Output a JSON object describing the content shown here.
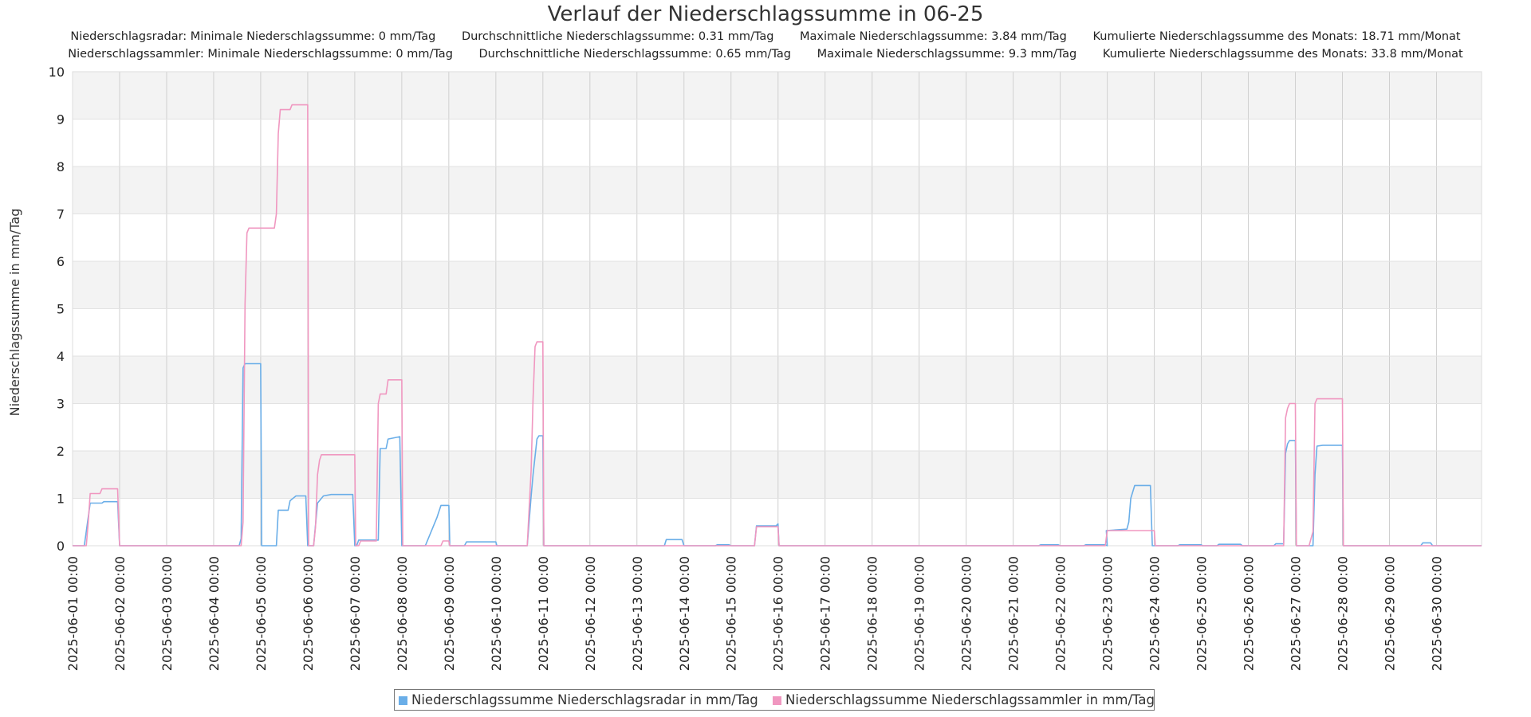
{
  "stats": {
    "radar": [
      "Niederschlagsradar: Minimale Niederschlagssumme: 0 mm/Tag",
      "Durchschnittliche Niederschlagssumme: 0.31 mm/Tag",
      "Maximale Niederschlagssumme: 3.84 mm/Tag",
      "Kumulierte Niederschlagssumme des Monats: 18.71 mm/Monat"
    ],
    "sammler": [
      "Niederschlagssammler: Minimale Niederschlagssumme: 0 mm/Tag",
      "Durchschnittliche Niederschlagssumme: 0.65 mm/Tag",
      "Maximale Niederschlagssumme: 9.3 mm/Tag",
      "Kumulierte Niederschlagssumme des Monats: 33.8 mm/Monat"
    ]
  },
  "chart_data": {
    "type": "line",
    "title": "Verlauf der Niederschlagssumme in 06-25",
    "xlabel": "",
    "ylabel": "Niederschlagssumme in mm/Tag",
    "ylim": [
      0,
      10
    ],
    "yticks": [
      "0",
      "1",
      "2",
      "3",
      "4",
      "5",
      "6",
      "7",
      "8",
      "9",
      "10"
    ],
    "xlim": [
      "2025-06-01 00:00",
      "2025-06-30 23:00"
    ],
    "xticks": [
      "2025-06-01 00:00",
      "2025-06-02 00:00",
      "2025-06-03 00:00",
      "2025-06-04 00:00",
      "2025-06-05 00:00",
      "2025-06-06 00:00",
      "2025-06-07 00:00",
      "2025-06-08 00:00",
      "2025-06-09 00:00",
      "2025-06-10 00:00",
      "2025-06-11 00:00",
      "2025-06-12 00:00",
      "2025-06-13 00:00",
      "2025-06-14 00:00",
      "2025-06-15 00:00",
      "2025-06-16 00:00",
      "2025-06-17 00:00",
      "2025-06-18 00:00",
      "2025-06-19 00:00",
      "2025-06-20 00:00",
      "2025-06-21 00:00",
      "2025-06-22 00:00",
      "2025-06-23 00:00",
      "2025-06-24 00:00",
      "2025-06-25 00:00",
      "2025-06-26 00:00",
      "2025-06-27 00:00",
      "2025-06-28 00:00",
      "2025-06-29 00:00",
      "2025-06-30 00:00"
    ],
    "grid": true,
    "legend": "bottom",
    "series": [
      {
        "name": "Niederschlagssumme Niederschlagsradar in mm/Tag",
        "color": "#6aaee8",
        "points": [
          [
            "2025-06-01 00:00",
            0
          ],
          [
            "2025-06-01 06:00",
            0
          ],
          [
            "2025-06-01 07:00",
            0.3
          ],
          [
            "2025-06-01 09:00",
            0.9
          ],
          [
            "2025-06-01 15:00",
            0.9
          ],
          [
            "2025-06-01 16:00",
            0.93
          ],
          [
            "2025-06-01 23:00",
            0.93
          ],
          [
            "2025-06-02 00:00",
            0
          ],
          [
            "2025-06-04 13:00",
            0
          ],
          [
            "2025-06-04 14:00",
            0.15
          ],
          [
            "2025-06-04 15:00",
            3.75
          ],
          [
            "2025-06-04 16:00",
            3.84
          ],
          [
            "2025-06-05 00:00",
            3.84
          ],
          [
            "2025-06-05 00:30",
            0
          ],
          [
            "2025-06-05 08:00",
            0
          ],
          [
            "2025-06-05 09:00",
            0.75
          ],
          [
            "2025-06-05 14:00",
            0.75
          ],
          [
            "2025-06-05 15:00",
            0.95
          ],
          [
            "2025-06-05 18:00",
            1.05
          ],
          [
            "2025-06-05 23:00",
            1.05
          ],
          [
            "2025-06-06 00:00",
            0
          ],
          [
            "2025-06-06 03:00",
            0
          ],
          [
            "2025-06-06 05:00",
            0.9
          ],
          [
            "2025-06-06 08:00",
            1.05
          ],
          [
            "2025-06-06 12:00",
            1.08
          ],
          [
            "2025-06-06 23:00",
            1.08
          ],
          [
            "2025-06-07 00:00",
            0
          ],
          [
            "2025-06-07 01:00",
            0
          ],
          [
            "2025-06-07 02:00",
            0.12
          ],
          [
            "2025-06-07 12:00",
            0.12
          ],
          [
            "2025-06-07 13:00",
            2.05
          ],
          [
            "2025-06-07 16:00",
            2.05
          ],
          [
            "2025-06-07 17:00",
            2.25
          ],
          [
            "2025-06-07 23:00",
            2.3
          ],
          [
            "2025-06-08 00:00",
            0
          ],
          [
            "2025-06-08 12:00",
            0
          ],
          [
            "2025-06-08 18:00",
            0.6
          ],
          [
            "2025-06-08 20:00",
            0.85
          ],
          [
            "2025-06-09 00:00",
            0.85
          ],
          [
            "2025-06-09 00:30",
            0
          ],
          [
            "2025-06-09 08:00",
            0
          ],
          [
            "2025-06-09 09:00",
            0.08
          ],
          [
            "2025-06-10 00:00",
            0.08
          ],
          [
            "2025-06-10 00:30",
            0
          ],
          [
            "2025-06-10 16:00",
            0
          ],
          [
            "2025-06-10 18:00",
            1.05
          ],
          [
            "2025-06-10 19:00",
            1.5
          ],
          [
            "2025-06-10 21:00",
            2.25
          ],
          [
            "2025-06-10 22:00",
            2.32
          ],
          [
            "2025-06-11 00:00",
            2.32
          ],
          [
            "2025-06-11 00:30",
            0
          ],
          [
            "2025-06-13 14:00",
            0
          ],
          [
            "2025-06-13 15:00",
            0.13
          ],
          [
            "2025-06-13 23:00",
            0.13
          ],
          [
            "2025-06-14 00:00",
            0
          ],
          [
            "2025-06-14 16:00",
            0
          ],
          [
            "2025-06-14 17:00",
            0.02
          ],
          [
            "2025-06-14 23:00",
            0.02
          ],
          [
            "2025-06-15 00:00",
            0
          ],
          [
            "2025-06-15 12:00",
            0
          ],
          [
            "2025-06-15 13:00",
            0.42
          ],
          [
            "2025-06-15 23:00",
            0.42
          ],
          [
            "2025-06-16 00:00",
            0.46
          ],
          [
            "2025-06-16 00:30",
            0
          ],
          [
            "2025-06-21 13:00",
            0
          ],
          [
            "2025-06-21 14:00",
            0.02
          ],
          [
            "2025-06-21 23:00",
            0.02
          ],
          [
            "2025-06-22 00:00",
            0
          ],
          [
            "2025-06-22 12:00",
            0
          ],
          [
            "2025-06-22 13:00",
            0.02
          ],
          [
            "2025-06-22 23:00",
            0.02
          ],
          [
            "2025-06-23 00:00",
            0
          ],
          [
            "2025-06-22 23:30",
            0.32
          ],
          [
            "2025-06-23 10:00",
            0.35
          ],
          [
            "2025-06-23 11:00",
            0.5
          ],
          [
            "2025-06-23 12:00",
            1.0
          ],
          [
            "2025-06-23 14:00",
            1.27
          ],
          [
            "2025-06-23 22:00",
            1.27
          ],
          [
            "2025-06-23 23:00",
            0
          ],
          [
            "2025-06-24 12:00",
            0
          ],
          [
            "2025-06-24 13:00",
            0.02
          ],
          [
            "2025-06-25 00:00",
            0.02
          ],
          [
            "2025-06-25 00:30",
            0
          ],
          [
            "2025-06-25 08:00",
            0
          ],
          [
            "2025-06-25 09:00",
            0.03
          ],
          [
            "2025-06-25 20:00",
            0.03
          ],
          [
            "2025-06-25 21:00",
            0
          ],
          [
            "2025-06-26 13:00",
            0
          ],
          [
            "2025-06-26 14:00",
            0.04
          ],
          [
            "2025-06-26 18:00",
            0.04
          ],
          [
            "2025-06-26 19:00",
            1.95
          ],
          [
            "2025-06-26 20:00",
            2.15
          ],
          [
            "2025-06-26 21:00",
            2.22
          ],
          [
            "2025-06-27 00:00",
            2.22
          ],
          [
            "2025-06-27 00:30",
            0
          ],
          [
            "2025-06-27 09:00",
            0
          ],
          [
            "2025-06-27 10:00",
            1.5
          ],
          [
            "2025-06-27 11:00",
            2.1
          ],
          [
            "2025-06-27 14:00",
            2.12
          ],
          [
            "2025-06-28 00:00",
            2.12
          ],
          [
            "2025-06-28 00:30",
            0
          ],
          [
            "2025-06-29 16:00",
            0
          ],
          [
            "2025-06-29 17:00",
            0.06
          ],
          [
            "2025-06-29 21:00",
            0.06
          ],
          [
            "2025-06-29 22:00",
            0
          ],
          [
            "2025-06-30 23:00",
            0
          ]
        ]
      },
      {
        "name": "Niederschlagssumme Niederschlagssammler in mm/Tag",
        "color": "#f097c0",
        "points": [
          [
            "2025-06-01 00:00",
            0
          ],
          [
            "2025-06-01 07:00",
            0
          ],
          [
            "2025-06-01 08:00",
            0.5
          ],
          [
            "2025-06-01 09:00",
            1.1
          ],
          [
            "2025-06-01 14:00",
            1.1
          ],
          [
            "2025-06-01 15:00",
            1.2
          ],
          [
            "2025-06-01 23:00",
            1.2
          ],
          [
            "2025-06-02 00:00",
            0
          ],
          [
            "2025-06-04 14:00",
            0
          ],
          [
            "2025-06-04 15:00",
            0.5
          ],
          [
            "2025-06-04 16:00",
            5.1
          ],
          [
            "2025-06-04 17:00",
            6.6
          ],
          [
            "2025-06-04 18:00",
            6.7
          ],
          [
            "2025-06-05 07:00",
            6.7
          ],
          [
            "2025-06-05 08:00",
            7.0
          ],
          [
            "2025-06-05 09:00",
            8.7
          ],
          [
            "2025-06-05 10:00",
            9.2
          ],
          [
            "2025-06-05 15:00",
            9.2
          ],
          [
            "2025-06-05 16:00",
            9.3
          ],
          [
            "2025-06-06 00:00",
            9.3
          ],
          [
            "2025-06-06 00:30",
            0
          ],
          [
            "2025-06-06 03:00",
            0
          ],
          [
            "2025-06-06 04:00",
            0.4
          ],
          [
            "2025-06-06 05:00",
            1.5
          ],
          [
            "2025-06-06 06:00",
            1.8
          ],
          [
            "2025-06-06 07:00",
            1.92
          ],
          [
            "2025-06-07 00:00",
            1.92
          ],
          [
            "2025-06-07 00:30",
            0
          ],
          [
            "2025-06-07 02:00",
            0
          ],
          [
            "2025-06-07 03:00",
            0.1
          ],
          [
            "2025-06-07 11:00",
            0.1
          ],
          [
            "2025-06-07 12:00",
            3.0
          ],
          [
            "2025-06-07 13:00",
            3.2
          ],
          [
            "2025-06-07 16:00",
            3.2
          ],
          [
            "2025-06-07 17:00",
            3.5
          ],
          [
            "2025-06-08 00:00",
            3.5
          ],
          [
            "2025-06-08 00:30",
            0
          ],
          [
            "2025-06-08 20:00",
            0
          ],
          [
            "2025-06-08 21:00",
            0.1
          ],
          [
            "2025-06-09 00:00",
            0.1
          ],
          [
            "2025-06-09 00:30",
            0
          ],
          [
            "2025-06-10 16:00",
            0
          ],
          [
            "2025-06-10 18:00",
            1.6
          ],
          [
            "2025-06-10 19:00",
            3.1
          ],
          [
            "2025-06-10 20:00",
            4.2
          ],
          [
            "2025-06-10 21:00",
            4.3
          ],
          [
            "2025-06-11 00:00",
            4.3
          ],
          [
            "2025-06-11 00:30",
            0
          ],
          [
            "2025-06-15 12:00",
            0
          ],
          [
            "2025-06-15 13:00",
            0.4
          ],
          [
            "2025-06-16 00:00",
            0.4
          ],
          [
            "2025-06-16 00:30",
            0
          ],
          [
            "2025-06-22 23:00",
            0
          ],
          [
            "2025-06-23 00:00",
            0.32
          ],
          [
            "2025-06-24 00:00",
            0.32
          ],
          [
            "2025-06-24 00:30",
            0
          ],
          [
            "2025-06-26 18:00",
            0
          ],
          [
            "2025-06-26 19:00",
            2.7
          ],
          [
            "2025-06-26 20:00",
            2.9
          ],
          [
            "2025-06-26 21:00",
            3.0
          ],
          [
            "2025-06-27 00:00",
            3.0
          ],
          [
            "2025-06-27 00:30",
            0
          ],
          [
            "2025-06-27 07:00",
            0
          ],
          [
            "2025-06-27 09:00",
            0.3
          ],
          [
            "2025-06-27 10:00",
            3.0
          ],
          [
            "2025-06-27 11:00",
            3.1
          ],
          [
            "2025-06-28 00:00",
            3.1
          ],
          [
            "2025-06-28 00:30",
            0
          ],
          [
            "2025-06-30 23:00",
            0
          ]
        ]
      }
    ]
  }
}
